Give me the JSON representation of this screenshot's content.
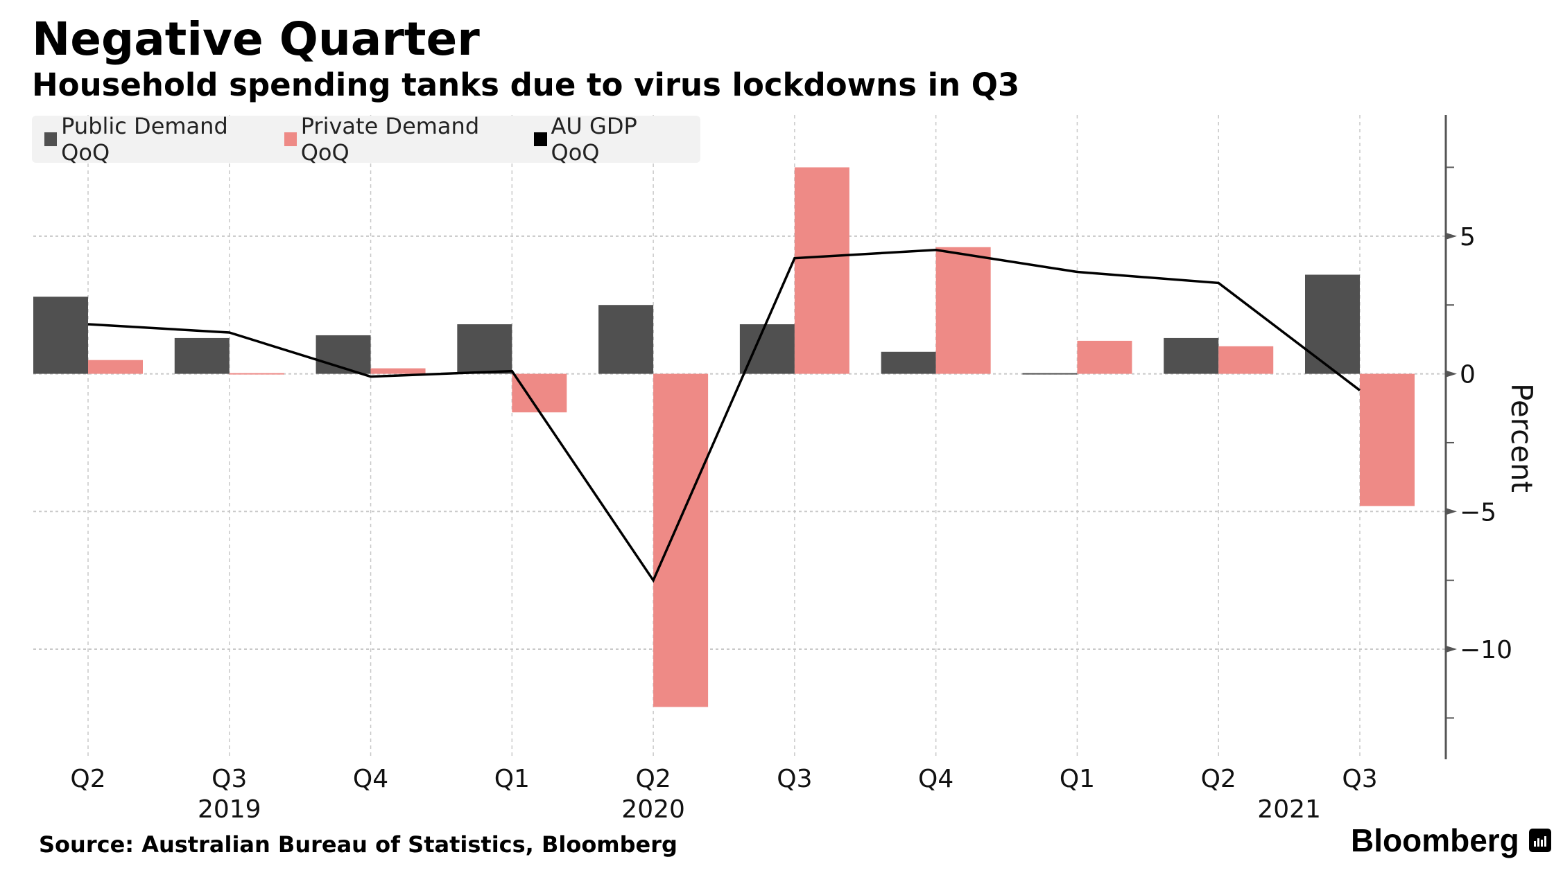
{
  "header": {
    "title": "Negative Quarter",
    "subtitle": "Household spending tanks due to virus lockdowns in Q3"
  },
  "legend": [
    {
      "label": "Public Demand QoQ",
      "color": "#505050"
    },
    {
      "label": "Private Demand QoQ",
      "color": "#ee8a86"
    },
    {
      "label": "AU GDP QoQ",
      "color": "#000000"
    }
  ],
  "footer": {
    "source": "Source: Australian Bureau of Statistics, Bloomberg",
    "brand": "Bloomberg",
    "brand_icon": "bloomberg-chart-icon"
  },
  "chart_data": {
    "type": "bar",
    "title": "Negative Quarter",
    "subtitle": "Household spending tanks due to virus lockdowns in Q3",
    "xlabel": "",
    "ylabel": "Percent",
    "ylim": [
      -14,
      9.4
    ],
    "yticks": [
      5,
      0,
      -5,
      -10
    ],
    "ytick_labels": [
      "5",
      "0",
      "-5",
      "-10"
    ],
    "grid": true,
    "legend_position": "top-left",
    "y_axis_side": "right",
    "categories": [
      "Q2 2019",
      "Q3 2019",
      "Q4 2019",
      "Q1 2020",
      "Q2 2020",
      "Q3 2020",
      "Q4 2020",
      "Q1 2021",
      "Q2 2021",
      "Q3 2021"
    ],
    "tick_labels": [
      "Q2",
      "Q3",
      "Q4",
      "Q1",
      "Q2",
      "Q3",
      "Q4",
      "Q1",
      "Q2",
      "Q3"
    ],
    "year_labels": [
      {
        "label": "2019",
        "at_index": 1
      },
      {
        "label": "2020",
        "at_index": 4
      },
      {
        "label": "2021",
        "at_index": 8.5
      }
    ],
    "series": [
      {
        "name": "Public Demand QoQ",
        "kind": "bar",
        "color": "#505050",
        "values": [
          2.8,
          1.3,
          1.4,
          1.8,
          2.5,
          1.8,
          0.8,
          0.0,
          1.3,
          3.6
        ]
      },
      {
        "name": "Private Demand QoQ",
        "kind": "bar",
        "color": "#ee8a86",
        "values": [
          0.5,
          0.0,
          0.2,
          -1.4,
          -12.1,
          7.5,
          4.6,
          1.2,
          1.0,
          -4.8
        ]
      },
      {
        "name": "AU GDP QoQ",
        "kind": "line",
        "color": "#000000",
        "values": [
          1.8,
          1.5,
          -0.1,
          0.1,
          -7.5,
          4.2,
          4.5,
          3.7,
          3.3,
          -0.6
        ]
      }
    ]
  }
}
